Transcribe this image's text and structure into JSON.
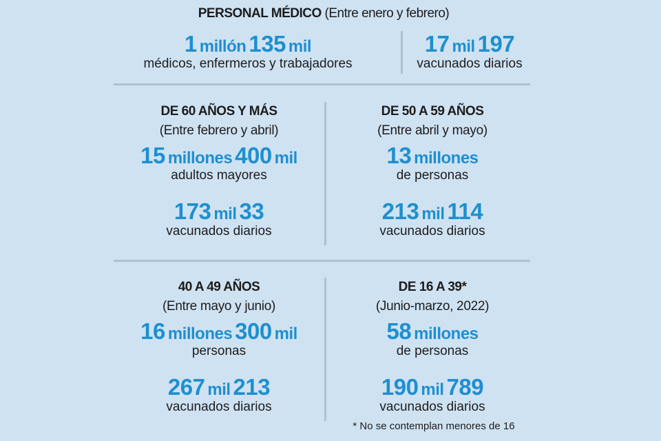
{
  "header": {
    "title": "PERSONAL MÉDICO",
    "period": "(Entre enero y febrero)",
    "stats": [
      {
        "number": [
          "1",
          "millón",
          "135",
          "mil"
        ],
        "label": "médicos, enfermeros y trabajadores"
      },
      {
        "number": [
          "17",
          "mil",
          "197"
        ],
        "label": "vacunados diarios"
      }
    ]
  },
  "groups": [
    {
      "title": "DE 60 AÑOS Y MÁS",
      "period": "(Entre febrero y abril)",
      "stats": [
        {
          "number": [
            "15",
            "millones",
            "400",
            "mil"
          ],
          "label": "adultos mayores"
        },
        {
          "number": [
            "173",
            "mil",
            "33"
          ],
          "label": "vacunados diarios"
        }
      ]
    },
    {
      "title": "DE 50 A 59 AÑOS",
      "period": "(Entre abril y mayo)",
      "stats": [
        {
          "number": [
            "13",
            "millones"
          ],
          "label": "de personas"
        },
        {
          "number": [
            "213",
            "mil",
            "114"
          ],
          "label": "vacunados diarios"
        }
      ]
    },
    {
      "title": "40 A 49 AÑOS",
      "period": "(Entre mayo y junio)",
      "stats": [
        {
          "number": [
            "16",
            "millones",
            "300",
            "mil"
          ],
          "label": "personas"
        },
        {
          "number": [
            "267",
            "mil",
            "213"
          ],
          "label": "vacunados diarios"
        }
      ]
    },
    {
      "title": "DE 16 A 39*",
      "period": "(Junio-marzo, 2022)",
      "stats": [
        {
          "number": [
            "58",
            "millones"
          ],
          "label": "de personas"
        },
        {
          "number": [
            "190",
            "mil",
            "789"
          ],
          "label": "vacunados diarios"
        }
      ]
    }
  ],
  "footnote": "* No se contemplan menores de 16"
}
